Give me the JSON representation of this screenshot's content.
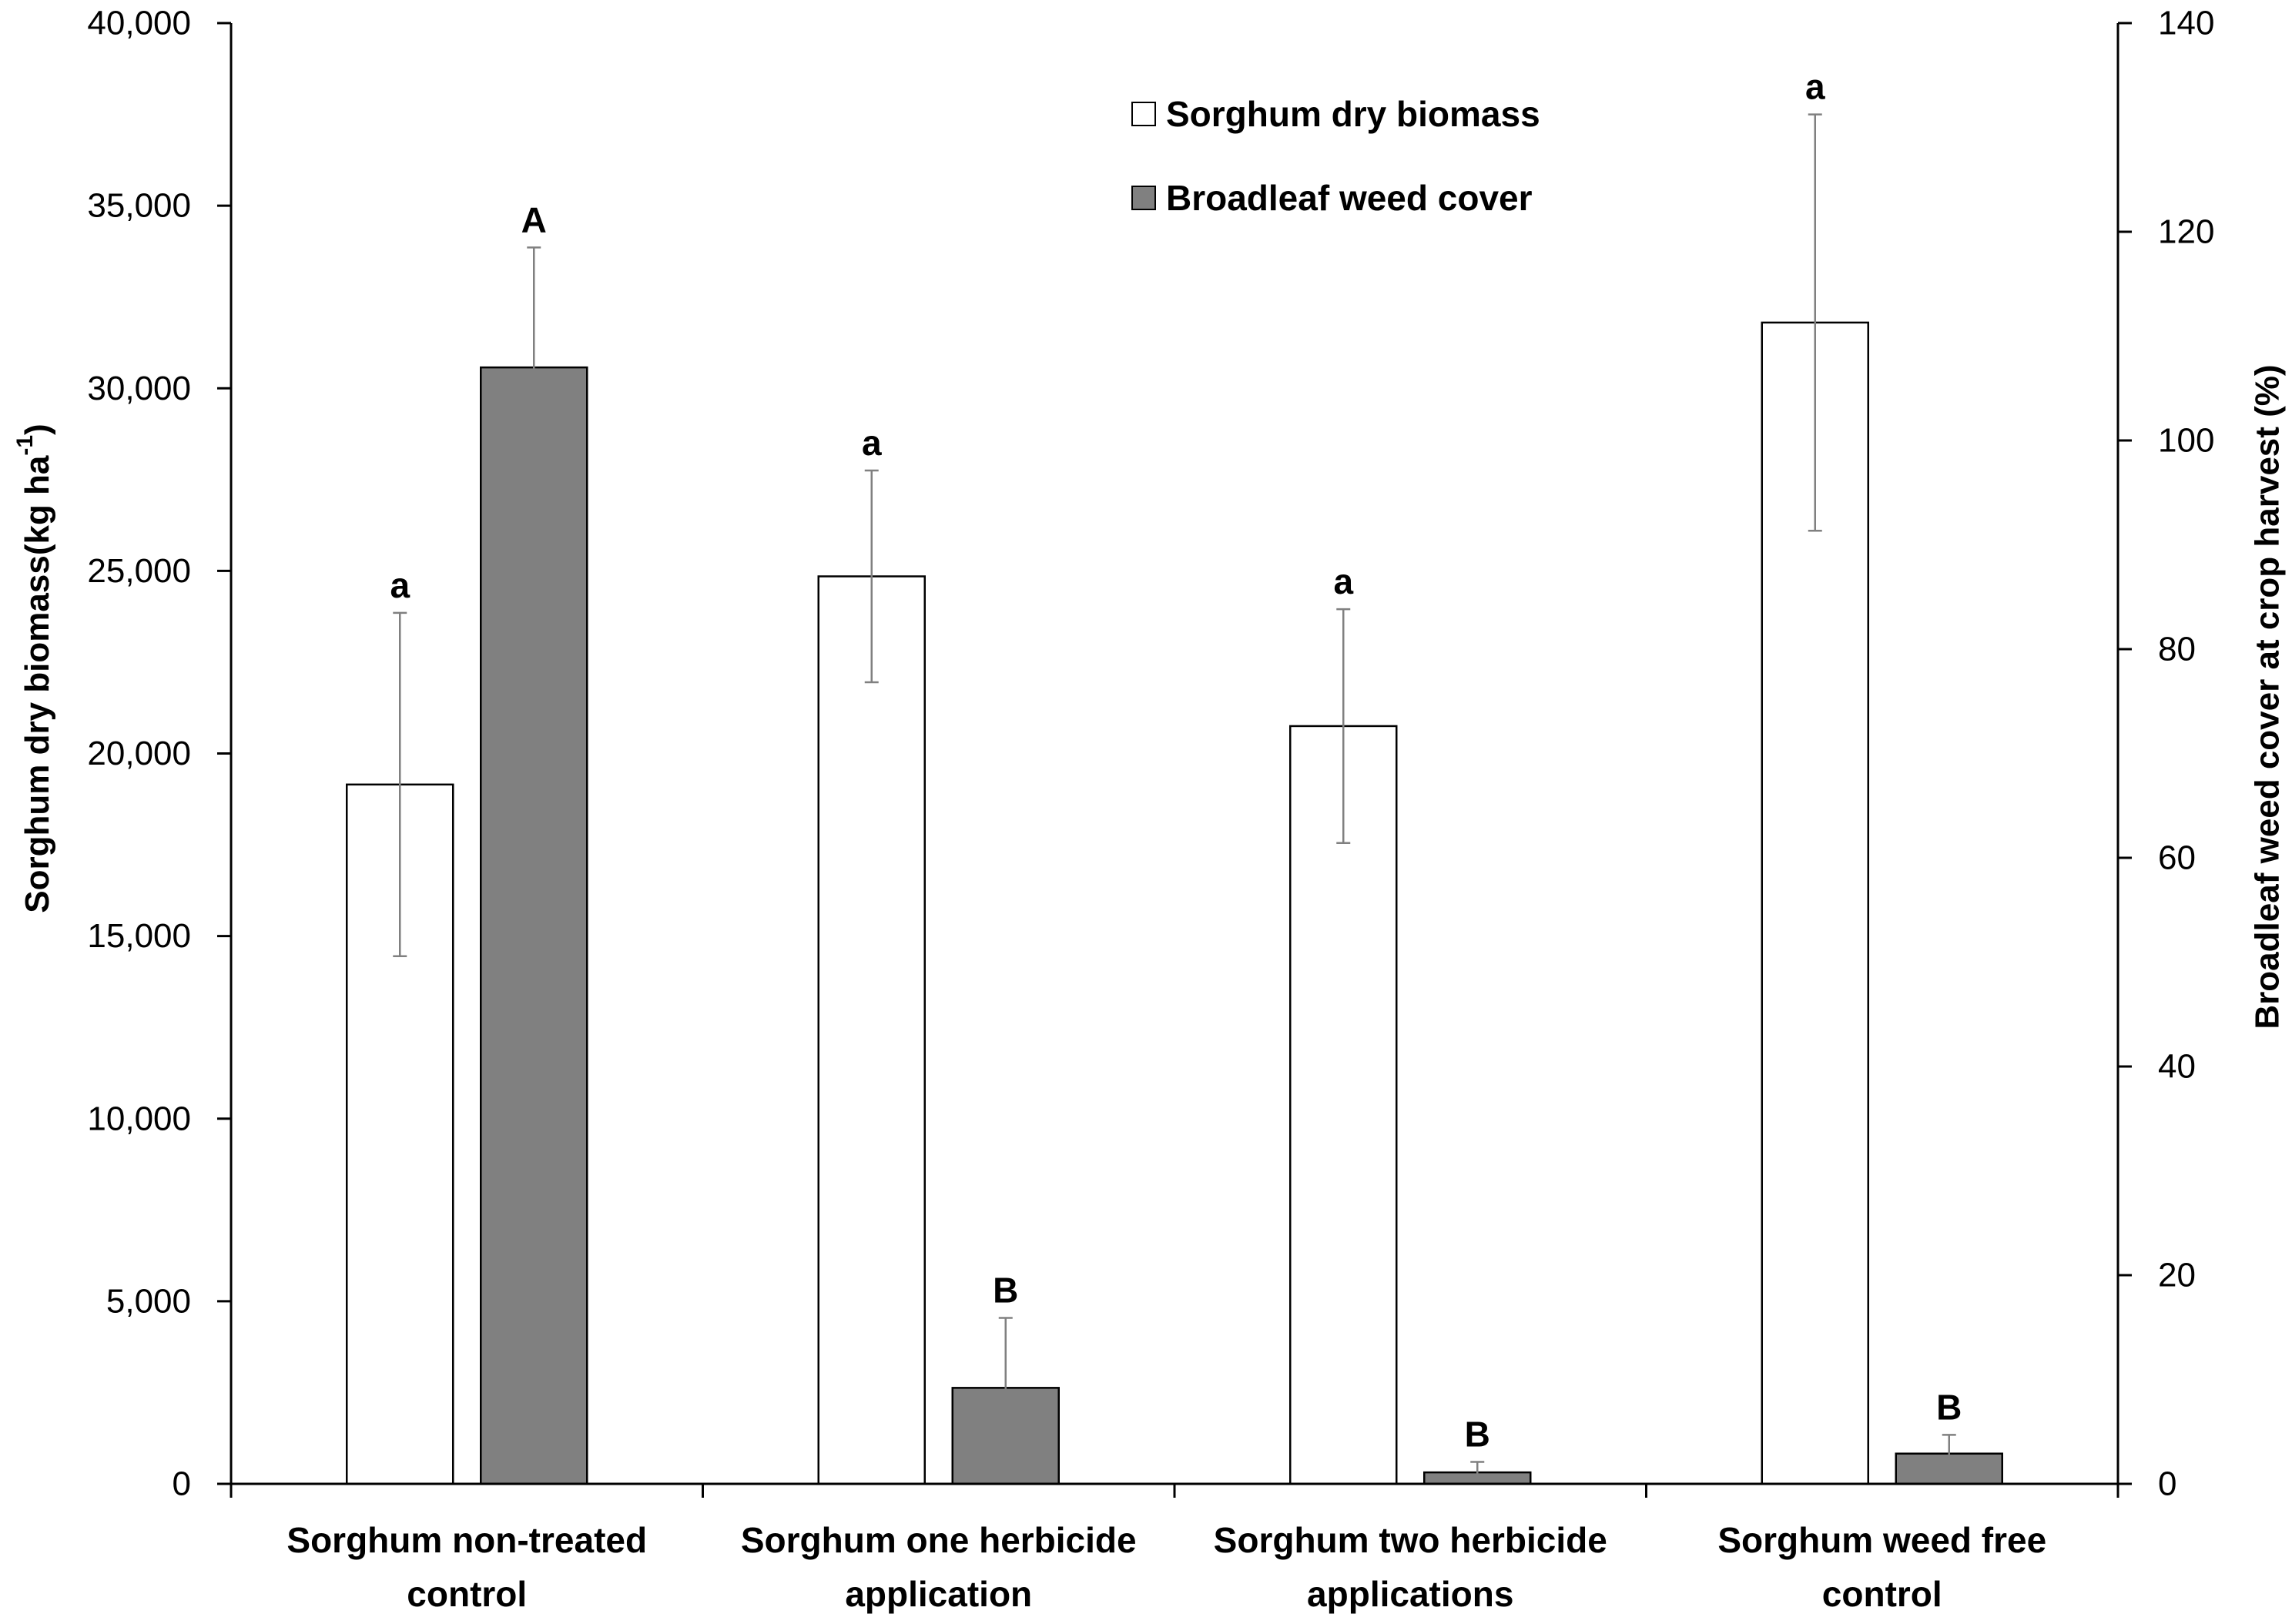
{
  "chart_data": {
    "type": "bar",
    "categories": [
      [
        "Sorghum non-treated",
        "control"
      ],
      [
        "Sorghum one herbicide",
        "application"
      ],
      [
        "Sorghum two herbicide",
        "applications"
      ],
      [
        "Sorghum weed free",
        "control"
      ]
    ],
    "series": [
      {
        "name": "Sorghum dry biomass",
        "axis": "left",
        "fill": "#ffffff",
        "values": [
          19150,
          24850,
          20750,
          31800
        ],
        "errors": [
          4700,
          2900,
          3200,
          5700
        ],
        "significance": [
          "a",
          "a",
          "a",
          "a"
        ]
      },
      {
        "name": "Broadleaf weed cover",
        "axis": "right",
        "fill": "#808080",
        "values": [
          107,
          9.2,
          1.1,
          2.9
        ],
        "errors": [
          11.5,
          6.7,
          1.0,
          1.8
        ],
        "significance": [
          "A",
          "B",
          "B",
          "B"
        ]
      }
    ],
    "y_left": {
      "label": "Sorghum dry biomass(kg ha",
      "label_sup": "-1",
      "label_end": ")",
      "min": 0,
      "max": 40000,
      "step": 5000,
      "tick_labels": [
        "0",
        "5,000",
        "10,000",
        "15,000",
        "20,000",
        "25,000",
        "30,000",
        "35,000",
        "40,000"
      ]
    },
    "y_right": {
      "label": "Broadleaf weed cover at crop harvest (%)",
      "min": 0,
      "max": 140,
      "step": 20,
      "tick_labels": [
        "0",
        "20",
        "40",
        "60",
        "80",
        "100",
        "120",
        "140"
      ]
    },
    "legend": {
      "position": "top-center"
    },
    "grid": false
  },
  "colors": {
    "axis": "#000000",
    "error_bar": "#808080",
    "bar_outline": "#000000"
  }
}
